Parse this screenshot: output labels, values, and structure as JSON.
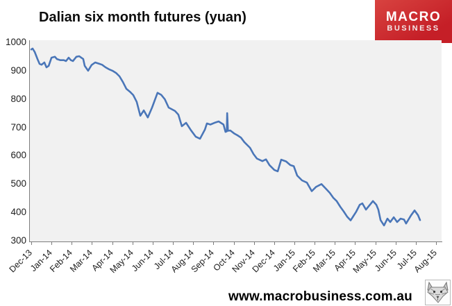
{
  "header": {
    "title": "Dalian six month futures (yuan)",
    "logo": {
      "line1": "MACRO",
      "line2": "BUSINESS",
      "bg_color": "#c9252c",
      "text_color": "#ffffff"
    }
  },
  "footer": {
    "url": "www.macrobusiness.com.au",
    "wolf_icon": "wolf-head-logo"
  },
  "chart_data": {
    "type": "line",
    "title": "Dalian six month futures (yuan)",
    "x_tick_labels": [
      "Dec-13",
      "Jan-14",
      "Feb-14",
      "Mar-14",
      "Apr-14",
      "May-14",
      "Jun-14",
      "Jul-14",
      "Aug-14",
      "Sep-14",
      "Oct-14",
      "Nov-14",
      "Dec-14",
      "Jan-15",
      "Feb-15",
      "Mar-15",
      "Apr-15",
      "May-15",
      "Jun-15",
      "Jul-15",
      "Aug-15"
    ],
    "y_ticks": [
      1000,
      900,
      800,
      700,
      600,
      500,
      400,
      300
    ],
    "ylim": [
      300,
      1000
    ],
    "xlim_months": [
      0,
      20.4
    ],
    "grid": "off",
    "legend": "none",
    "plot_bg_color": "#f1f1f1",
    "axis_color": "#7c7c7c",
    "series": [
      {
        "name": "Dalian six month futures (yuan)",
        "color": "#4a76b8",
        "points": [
          [
            0.0,
            975
          ],
          [
            0.07,
            978
          ],
          [
            0.17,
            966
          ],
          [
            0.31,
            941
          ],
          [
            0.41,
            924
          ],
          [
            0.51,
            921
          ],
          [
            0.65,
            929
          ],
          [
            0.75,
            912
          ],
          [
            0.86,
            917
          ],
          [
            1.0,
            946
          ],
          [
            1.17,
            949
          ],
          [
            1.27,
            941
          ],
          [
            1.44,
            937
          ],
          [
            1.61,
            937
          ],
          [
            1.72,
            934
          ],
          [
            1.85,
            946
          ],
          [
            1.96,
            937
          ],
          [
            2.06,
            934
          ],
          [
            2.23,
            949
          ],
          [
            2.37,
            951
          ],
          [
            2.47,
            946
          ],
          [
            2.57,
            941
          ],
          [
            2.64,
            917
          ],
          [
            2.81,
            900
          ],
          [
            2.98,
            920
          ],
          [
            3.16,
            929
          ],
          [
            3.33,
            925
          ],
          [
            3.5,
            921
          ],
          [
            3.67,
            912
          ],
          [
            3.84,
            905
          ],
          [
            4.01,
            900
          ],
          [
            4.19,
            892
          ],
          [
            4.36,
            880
          ],
          [
            4.53,
            860
          ],
          [
            4.7,
            836
          ],
          [
            4.87,
            826
          ],
          [
            5.04,
            814
          ],
          [
            5.21,
            790
          ],
          [
            5.39,
            741
          ],
          [
            5.56,
            760
          ],
          [
            5.76,
            735
          ],
          [
            5.97,
            770
          ],
          [
            6.24,
            822
          ],
          [
            6.42,
            815
          ],
          [
            6.6,
            799
          ],
          [
            6.79,
            770
          ],
          [
            7.1,
            758
          ],
          [
            7.27,
            745
          ],
          [
            7.44,
            704
          ],
          [
            7.65,
            716
          ],
          [
            7.89,
            690
          ],
          [
            8.13,
            667
          ],
          [
            8.34,
            660
          ],
          [
            8.58,
            692
          ],
          [
            8.68,
            714
          ],
          [
            8.85,
            710
          ],
          [
            9.09,
            717
          ],
          [
            9.26,
            721
          ],
          [
            9.5,
            710
          ],
          [
            9.6,
            684
          ],
          [
            9.66,
            686
          ],
          [
            9.68,
            750
          ],
          [
            9.72,
            688
          ],
          [
            9.84,
            689
          ],
          [
            10.02,
            679
          ],
          [
            10.19,
            672
          ],
          [
            10.36,
            664
          ],
          [
            10.53,
            648
          ],
          [
            10.81,
            628
          ],
          [
            10.98,
            606
          ],
          [
            11.15,
            590
          ],
          [
            11.42,
            581
          ],
          [
            11.6,
            587
          ],
          [
            11.77,
            567
          ],
          [
            12.01,
            550
          ],
          [
            12.18,
            545
          ],
          [
            12.35,
            586
          ],
          [
            12.59,
            580
          ],
          [
            12.8,
            567
          ],
          [
            12.97,
            563
          ],
          [
            13.14,
            530
          ],
          [
            13.38,
            513
          ],
          [
            13.62,
            505
          ],
          [
            13.86,
            475
          ],
          [
            14.07,
            490
          ],
          [
            14.34,
            500
          ],
          [
            14.58,
            482
          ],
          [
            14.75,
            469
          ],
          [
            14.92,
            452
          ],
          [
            15.09,
            440
          ],
          [
            15.27,
            420
          ],
          [
            15.44,
            403
          ],
          [
            15.61,
            385
          ],
          [
            15.78,
            372
          ],
          [
            16.06,
            403
          ],
          [
            16.23,
            427
          ],
          [
            16.36,
            432
          ],
          [
            16.54,
            410
          ],
          [
            16.71,
            425
          ],
          [
            16.88,
            440
          ],
          [
            17.05,
            427
          ],
          [
            17.15,
            410
          ],
          [
            17.26,
            373
          ],
          [
            17.43,
            354
          ],
          [
            17.6,
            378
          ],
          [
            17.74,
            366
          ],
          [
            17.91,
            383
          ],
          [
            18.08,
            366
          ],
          [
            18.25,
            378
          ],
          [
            18.42,
            375
          ],
          [
            18.52,
            361
          ],
          [
            18.77,
            390
          ],
          [
            18.94,
            407
          ],
          [
            19.11,
            390
          ],
          [
            19.21,
            373
          ]
        ]
      }
    ]
  }
}
